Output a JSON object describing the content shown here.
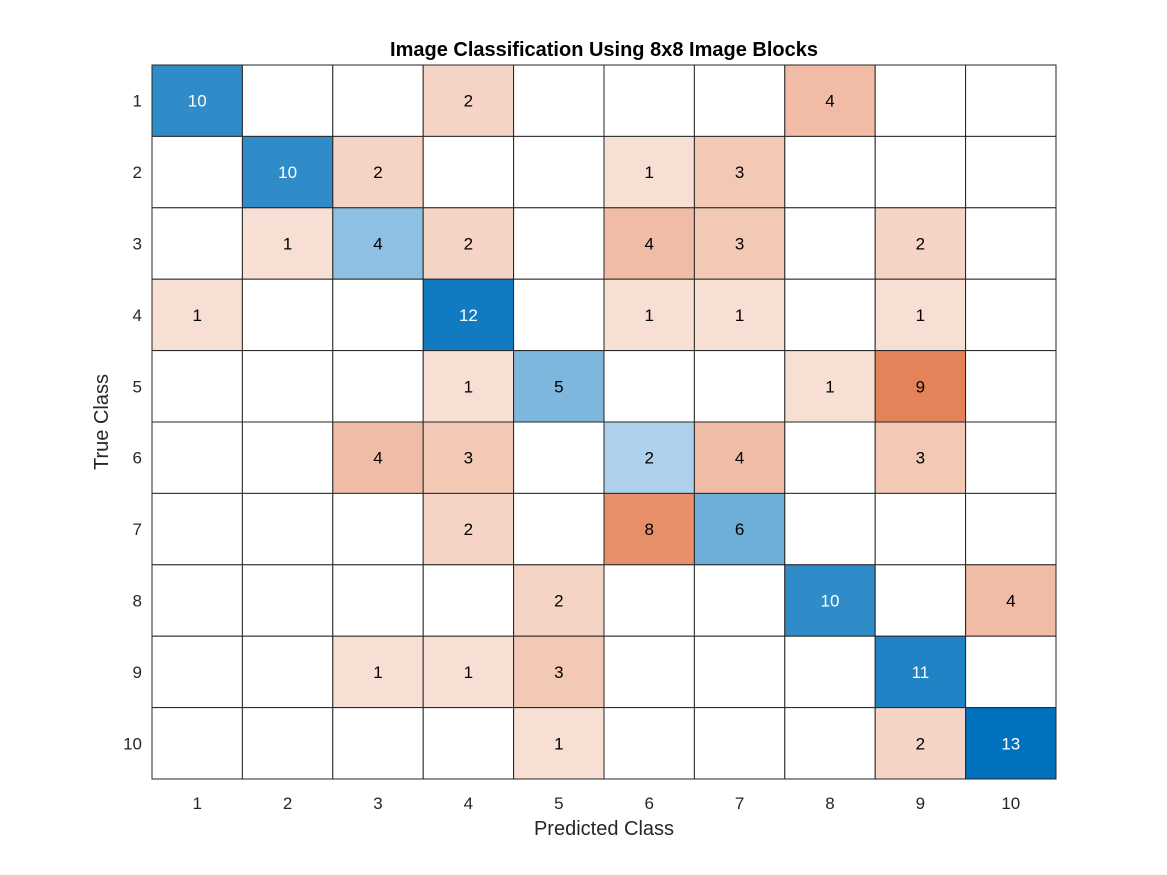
{
  "chart_data": {
    "type": "heatmap",
    "title": "Image Classification Using 8x8 Image Blocks",
    "xlabel": "Predicted Class",
    "ylabel": "True Class",
    "x_categories": [
      "1",
      "2",
      "3",
      "4",
      "5",
      "6",
      "7",
      "8",
      "9",
      "10"
    ],
    "y_categories": [
      "1",
      "2",
      "3",
      "4",
      "5",
      "6",
      "7",
      "8",
      "9",
      "10"
    ],
    "matrix": [
      [
        10,
        0,
        0,
        2,
        0,
        0,
        0,
        4,
        0,
        0
      ],
      [
        0,
        10,
        2,
        0,
        0,
        1,
        3,
        0,
        0,
        0
      ],
      [
        0,
        1,
        4,
        2,
        0,
        4,
        3,
        0,
        2,
        0
      ],
      [
        1,
        0,
        0,
        12,
        0,
        1,
        1,
        0,
        1,
        0
      ],
      [
        0,
        0,
        0,
        1,
        5,
        0,
        0,
        1,
        9,
        0
      ],
      [
        0,
        0,
        4,
        3,
        0,
        2,
        4,
        0,
        3,
        0
      ],
      [
        0,
        0,
        0,
        2,
        0,
        8,
        6,
        0,
        0,
        0
      ],
      [
        0,
        0,
        0,
        0,
        2,
        0,
        0,
        10,
        0,
        4
      ],
      [
        0,
        0,
        1,
        1,
        3,
        0,
        0,
        0,
        11,
        0
      ],
      [
        0,
        0,
        0,
        0,
        1,
        0,
        0,
        0,
        2,
        13
      ]
    ],
    "zero_cells_shown": false,
    "colors": {
      "diagonal": "#0072bd",
      "off_diagonal": "#d95319",
      "grid_line": "#262626"
    }
  }
}
